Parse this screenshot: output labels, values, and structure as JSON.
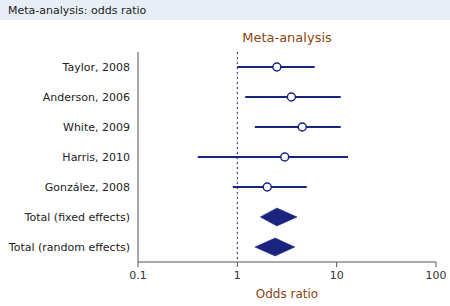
{
  "chart_data": {
    "type": "forest",
    "title": "Meta-analysis",
    "x_label": "Odds ratio",
    "annotations": [
      {
        "text": "Meta-analysis: odds ratio"
      }
    ],
    "categories": [
      "Taylor, 2008",
      "Anderson, 2006",
      "White, 2009",
      "Harris, 2010",
      "González, 2008",
      "Total (fixed effects)",
      "Total (random effects)"
    ],
    "series": [
      {
        "marker": "circle",
        "color": "#1a237e",
        "values": [
          2.5,
          3.5,
          4.5,
          3.0,
          2.0,
          null,
          null
        ],
        "ci_low": [
          1.0,
          1.2,
          1.5,
          0.4,
          0.9,
          null,
          null
        ],
        "ci_high": [
          6.0,
          11.0,
          11.0,
          13.0,
          5.0,
          null,
          null
        ]
      },
      {
        "marker": "diamond",
        "color": "#1a237e",
        "values": [
          null,
          null,
          null,
          null,
          null,
          2.5,
          2.4
        ],
        "ci_low": [
          null,
          null,
          null,
          null,
          null,
          1.7,
          1.5
        ],
        "ci_high": [
          null,
          null,
          null,
          null,
          null,
          4.0,
          3.8
        ]
      }
    ],
    "reference_line": 1,
    "log": "x",
    "xlim": [
      0.1,
      100
    ],
    "xticks": [
      0.1,
      1,
      10,
      100
    ],
    "tick_labels": "x",
    "grid": false
  }
}
